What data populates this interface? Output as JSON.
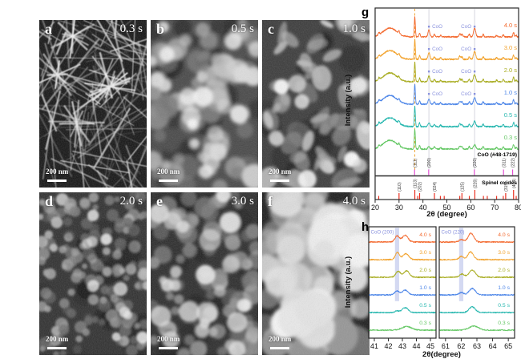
{
  "figure": {
    "sem_panels": [
      {
        "letter": "a",
        "time": "0.3 s",
        "scalebar": "200 nm"
      },
      {
        "letter": "b",
        "time": "0.5 s",
        "scalebar": "200 nm"
      },
      {
        "letter": "c",
        "time": "1.0 s",
        "scalebar": "200 nm"
      },
      {
        "letter": "d",
        "time": "2.0 s",
        "scalebar": "200 nm"
      },
      {
        "letter": "e",
        "time": "3.0 s",
        "scalebar": "200 nm"
      },
      {
        "letter": "f",
        "time": "4.0 s",
        "scalebar": "200 nm"
      }
    ]
  },
  "chart_data": {
    "panel_g": {
      "type": "line",
      "panel_letter": "g",
      "xlabel": "2θ (degree)",
      "ylabel": "Intensity (a.u.)",
      "xlim": [
        20,
        80
      ],
      "xticks": [
        20,
        30,
        40,
        50,
        60,
        70,
        80
      ],
      "series": [
        {
          "name": "4.0 s",
          "color": "#f3692e",
          "coo_200_h": 8.5,
          "coo_220_h": 10.5
        },
        {
          "name": "3.0 s",
          "color": "#f2a22c",
          "coo_200_h": 8,
          "coo_220_h": 10
        },
        {
          "name": "2.0 s",
          "color": "#a9ad23",
          "coo_200_h": 7,
          "coo_220_h": 9
        },
        {
          "name": "1.0 s",
          "color": "#4d86e8",
          "coo_200_h": 6,
          "coo_220_h": 8
        },
        {
          "name": "0.5 s",
          "color": "#27b7af",
          "coo_200_h": 4.5,
          "coo_220_h": 7
        },
        {
          "name": "0.3 s",
          "color": "#63c763",
          "coo_200_h": 3.5,
          "coo_220_h": 5.5
        }
      ],
      "coo_label": "CoO",
      "coo_label_color": "#8a92dd",
      "coo_marked_series": [
        "4.0 s",
        "3.0 s",
        "2.0 s",
        "1.0 s"
      ],
      "coo_peaks": {
        "p200": {
          "x": 42.5,
          "w": 0.4
        },
        "p220": {
          "x": 61.6,
          "w": 0.45
        }
      },
      "guide_solid_x": [
        42.5,
        61.6
      ],
      "guide_dashed_x": [
        36.6
      ],
      "guide_dash_color": "#f0a93c",
      "common_peaks": [
        {
          "x": 21.6,
          "h": 2.5,
          "w": 0.25
        },
        {
          "x": 26.2,
          "h": 11,
          "w": 2.8
        },
        {
          "x": 30.0,
          "h": 3,
          "w": 0.25
        },
        {
          "x": 36.6,
          "h": 25,
          "w": 0.22
        },
        {
          "x": 38.6,
          "h": 4.5,
          "w": 0.25
        },
        {
          "x": 44.8,
          "h": 3,
          "w": 0.28
        },
        {
          "x": 47.4,
          "h": 2,
          "w": 0.25
        },
        {
          "x": 55.4,
          "h": 4,
          "w": 0.3
        },
        {
          "x": 56.3,
          "h": 3,
          "w": 0.3
        },
        {
          "x": 59.4,
          "h": 3,
          "w": 0.28
        },
        {
          "x": 65.2,
          "h": 3,
          "w": 0.28
        },
        {
          "x": 70.8,
          "h": 2,
          "w": 0.28
        },
        {
          "x": 73.6,
          "h": 2.5,
          "w": 0.28
        },
        {
          "x": 77.9,
          "h": 5.5,
          "w": 0.26
        },
        {
          "x": 79.0,
          "h": 2,
          "w": 0.26
        }
      ],
      "references": [
        {
          "name": "CoO (#48-1719)",
          "color": "#e24fd2",
          "peaks": [
            {
              "x": 36.5,
              "hkl": "(111)",
              "tall": true
            },
            {
              "x": 42.4,
              "hkl": "(200)",
              "tall": true
            },
            {
              "x": 61.5,
              "hkl": "(220)",
              "tall": true
            },
            {
              "x": 73.7,
              "hkl": "(311)"
            },
            {
              "x": 77.5,
              "hkl": "(222)"
            }
          ]
        },
        {
          "name": "Spinel oxides",
          "color": "#ea3223",
          "peaks": [
            {
              "x": 21.5
            },
            {
              "x": 30.0,
              "hkl": "(110)"
            },
            {
              "x": 36.6,
              "hkl": "(113)",
              "tall": true
            },
            {
              "x": 37.8
            },
            {
              "x": 38.6,
              "hkl": "(202)"
            },
            {
              "x": 44.8,
              "hkl": "(024)"
            },
            {
              "x": 47.3
            },
            {
              "x": 48.9
            },
            {
              "x": 55.4
            },
            {
              "x": 56.3,
              "hkl": "(125)"
            },
            {
              "x": 59.4
            },
            {
              "x": 61.7,
              "hkl": "(220)",
              "tall": true
            },
            {
              "x": 65.3
            },
            {
              "x": 66.9
            },
            {
              "x": 70.8
            },
            {
              "x": 73.6
            },
            {
              "x": 74.6,
              "hkl": "(315)"
            },
            {
              "x": 77.9,
              "hkl": "(404)",
              "tall": true
            },
            {
              "x": 79.0
            }
          ]
        }
      ]
    },
    "panel_h": {
      "panel_letter": "h",
      "xlabel": "2θ(degree)",
      "ylabel": "Intensity (a.u.)",
      "highlight_color": "#aab4e6",
      "coo_label_color": "#8a92dd",
      "left": {
        "corner_label": "CoO (200)",
        "xlim": [
          40.6,
          45.4
        ],
        "xticks": [
          41,
          42,
          43,
          44,
          45
        ],
        "highlight_x": 42.62,
        "series": [
          {
            "name": "4.0 s",
            "peaks": [
              {
                "x": 42.62,
                "h": 7.5,
                "w": 0.16
              },
              {
                "x": 43.2,
                "h": 8.5,
                "w": 0.2
              }
            ]
          },
          {
            "name": "3.0 s",
            "peaks": [
              {
                "x": 42.65,
                "h": 9,
                "w": 0.15
              },
              {
                "x": 43.25,
                "h": 7.5,
                "w": 0.2
              }
            ]
          },
          {
            "name": "2.0 s",
            "peaks": [
              {
                "x": 42.7,
                "h": 7.5,
                "w": 0.17
              },
              {
                "x": 43.3,
                "h": 8,
                "w": 0.2
              }
            ]
          },
          {
            "name": "1.0 s",
            "peaks": [
              {
                "x": 42.62,
                "h": 5,
                "w": 0.16
              },
              {
                "x": 43.2,
                "h": 6,
                "w": 0.2
              }
            ]
          },
          {
            "name": "0.5 s",
            "peaks": [
              {
                "x": 42.6,
                "h": 2,
                "w": 0.15
              },
              {
                "x": 43.2,
                "h": 6,
                "w": 0.22
              }
            ]
          },
          {
            "name": "0.3 s",
            "peaks": [
              {
                "x": 43.3,
                "h": 4.5,
                "w": 0.35
              }
            ]
          }
        ]
      },
      "right": {
        "corner_label": "CoO (220)",
        "xlim": [
          60.6,
          65.4
        ],
        "xticks": [
          61,
          62,
          63,
          64,
          65
        ],
        "highlight_x": 62.0,
        "series": [
          {
            "name": "4.0 s",
            "peaks": [
              {
                "x": 62.0,
                "h": 3,
                "w": 0.14
              },
              {
                "x": 62.62,
                "h": 11,
                "w": 0.18
              }
            ]
          },
          {
            "name": "3.0 s",
            "peaks": [
              {
                "x": 62.0,
                "h": 4,
                "w": 0.14
              },
              {
                "x": 62.6,
                "h": 9.5,
                "w": 0.18
              }
            ]
          },
          {
            "name": "2.0 s",
            "peaks": [
              {
                "x": 62.05,
                "h": 4,
                "w": 0.15
              },
              {
                "x": 62.7,
                "h": 9,
                "w": 0.2
              }
            ]
          },
          {
            "name": "1.0 s",
            "peaks": [
              {
                "x": 62.0,
                "h": 3,
                "w": 0.15
              },
              {
                "x": 62.7,
                "h": 8,
                "w": 0.2
              }
            ]
          },
          {
            "name": "0.5 s",
            "peaks": [
              {
                "x": 62.7,
                "h": 7,
                "w": 0.2
              }
            ]
          },
          {
            "name": "0.3 s",
            "peaks": [
              {
                "x": 62.8,
                "h": 5,
                "w": 0.3
              }
            ]
          }
        ]
      }
    }
  }
}
